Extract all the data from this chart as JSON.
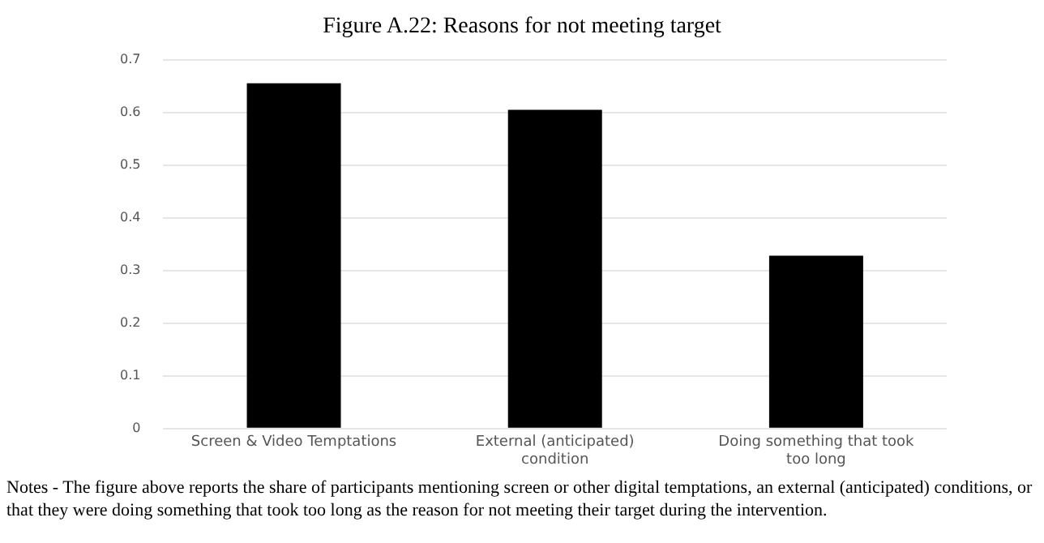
{
  "chart_data": {
    "type": "bar",
    "title": "Figure A.22: Reasons for not meeting target",
    "categories": [
      "Screen & Video Temptations",
      "External (anticipated) condition",
      "Doing something that took too long"
    ],
    "values": [
      0.655,
      0.605,
      0.328
    ],
    "color": "#000000",
    "ylim": [
      0,
      0.7
    ],
    "yticks": [
      0,
      0.1,
      0.2,
      0.3,
      0.4,
      0.5,
      0.6,
      0.7
    ],
    "grid": "y",
    "annotations": [
      "Notes - The figure above reports the share of participants mentioning screen or other digital temptations, an external (anticipated) conditions, or that they were doing something that took too long as the reason for not meeting their target during the intervention."
    ]
  }
}
